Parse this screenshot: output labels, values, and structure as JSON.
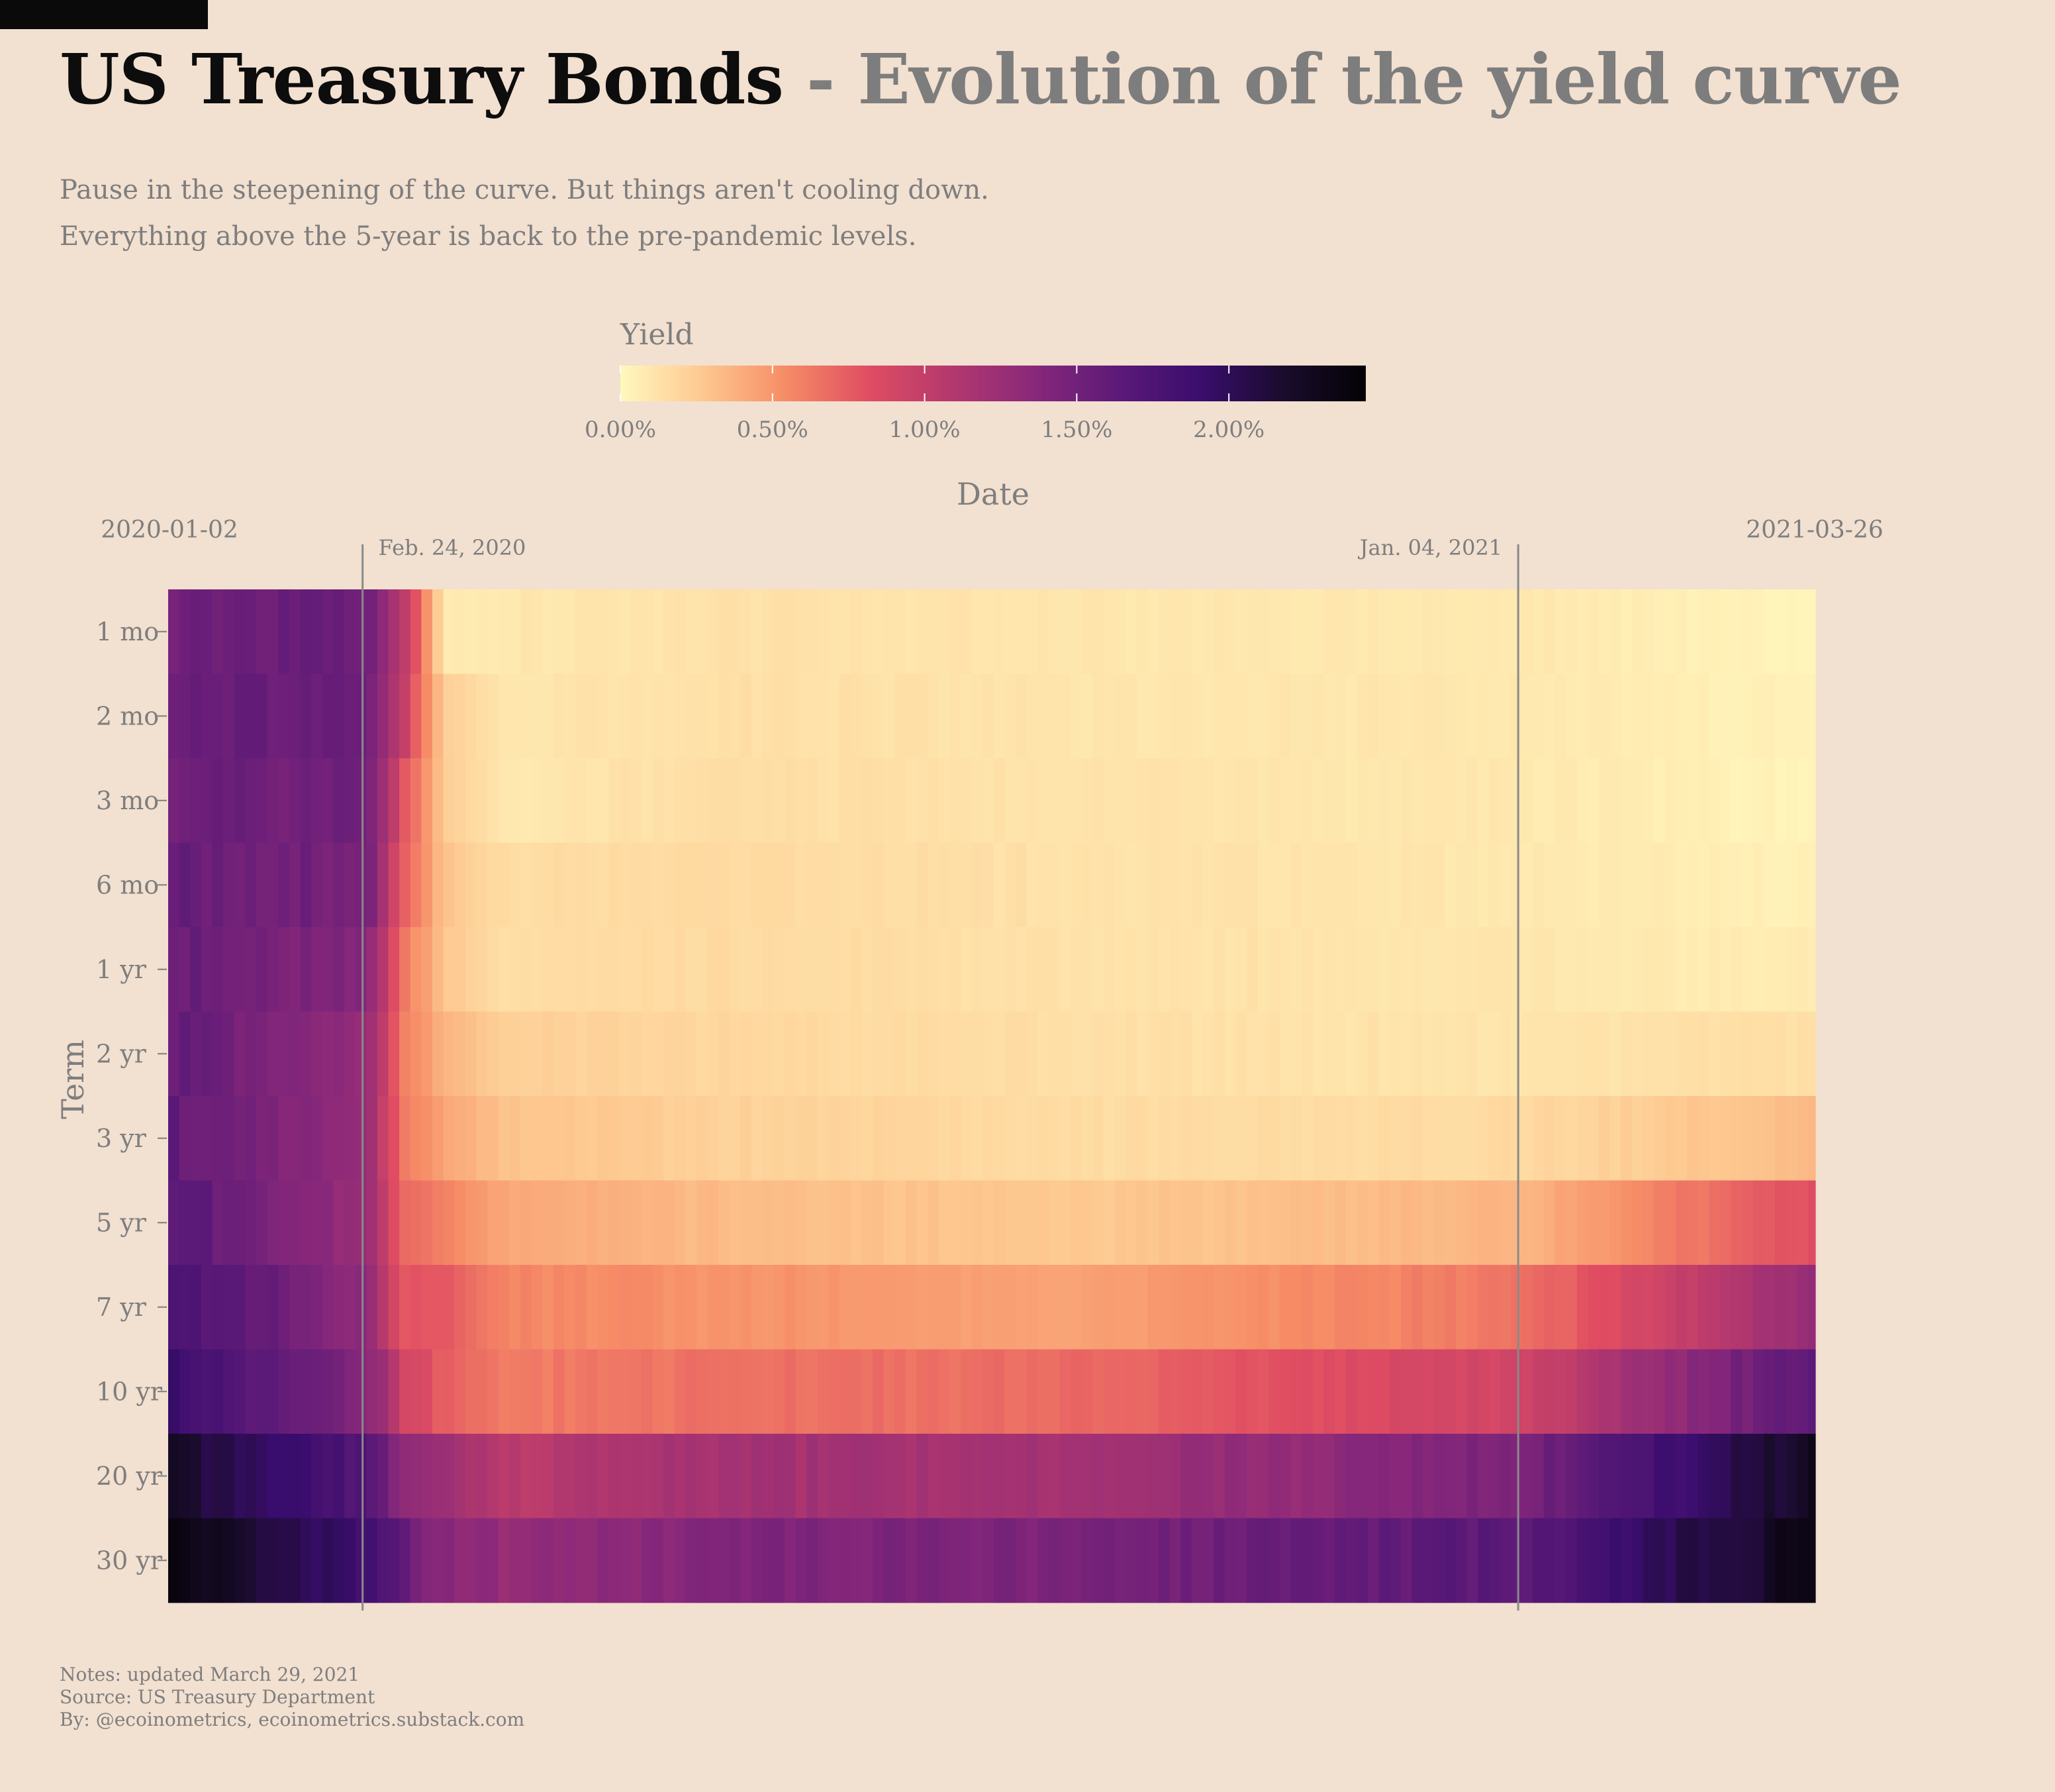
{
  "header": {
    "title_main": "US Treasury Bonds",
    "title_sep": " - ",
    "title_sub": "Evolution of the yield curve",
    "subtitle_lines": [
      "Pause in the steepening of the curve. But things aren't cooling down.",
      "Everything above the 5-year is back to the pre-pandemic levels."
    ]
  },
  "footer": {
    "notes": "Notes: updated March 29, 2021",
    "source": "Source: US Treasury Department",
    "by": "By: @ecoinometrics, ecoinometrics.substack.com"
  },
  "colors": {
    "background": "#f2e0d0",
    "title": "#0d0d0d",
    "muted_text": "#7e7e7e",
    "palette": "magma",
    "palette_stops": [
      "#fff8be",
      "#fdc890",
      "#f68c66",
      "#e04d62",
      "#b3386e",
      "#88287a",
      "#5c1a78",
      "#3a0d6e",
      "#1a0c2d",
      "#040205"
    ]
  },
  "chart_data": {
    "type": "heatmap",
    "xlabel": "Date",
    "ylabel": "Term",
    "x_range": [
      "2020-01-02",
      "2021-03-26"
    ],
    "x_end_labels": [
      "2020-01-02",
      "2021-03-26"
    ],
    "annotations": [
      {
        "date": "2020-02-24",
        "label": "Feb. 24, 2020"
      },
      {
        "date": "2021-01-04",
        "label": "Jan. 04, 2021"
      }
    ],
    "terms": [
      "1 mo",
      "2 mo",
      "3 mo",
      "6 mo",
      "1 yr",
      "2 yr",
      "3 yr",
      "5 yr",
      "7 yr",
      "10 yr",
      "20 yr",
      "30 yr"
    ],
    "legend": {
      "title": "Yield",
      "range": [
        0,
        2.45
      ],
      "ticks": [
        0,
        0.5,
        1.0,
        1.5,
        2.0
      ],
      "tick_labels": [
        "0.00%",
        "0.50%",
        "1.00%",
        "1.50%",
        "2.00%"
      ]
    },
    "series": [
      {
        "term": "1 mo",
        "dates": [
          "2020-01-02",
          "2020-02-24",
          "2020-03-05",
          "2020-03-16",
          "2020-04-01",
          "2020-06-01",
          "2020-09-01",
          "2021-01-04",
          "2021-03-26"
        ],
        "values": [
          1.53,
          1.55,
          1.05,
          0.08,
          0.09,
          0.13,
          0.1,
          0.09,
          0.02
        ]
      },
      {
        "term": "2 mo",
        "dates": [
          "2020-01-02",
          "2020-02-24",
          "2020-03-05",
          "2020-03-16",
          "2020-04-01",
          "2020-06-01",
          "2020-09-01",
          "2021-01-04",
          "2021-03-26"
        ],
        "values": [
          1.55,
          1.55,
          0.95,
          0.23,
          0.1,
          0.14,
          0.11,
          0.09,
          0.03
        ]
      },
      {
        "term": "3 mo",
        "dates": [
          "2020-01-02",
          "2020-02-24",
          "2020-03-05",
          "2020-03-16",
          "2020-04-01",
          "2020-06-01",
          "2020-09-01",
          "2021-01-04",
          "2021-03-26"
        ],
        "values": [
          1.54,
          1.51,
          0.78,
          0.24,
          0.09,
          0.15,
          0.12,
          0.09,
          0.02
        ]
      },
      {
        "term": "6 mo",
        "dates": [
          "2020-01-02",
          "2020-02-24",
          "2020-03-05",
          "2020-03-16",
          "2020-04-01",
          "2020-06-01",
          "2020-09-01",
          "2021-01-04",
          "2021-03-26"
        ],
        "values": [
          1.57,
          1.47,
          0.72,
          0.29,
          0.15,
          0.17,
          0.13,
          0.09,
          0.04
        ]
      },
      {
        "term": "1 yr",
        "dates": [
          "2020-01-02",
          "2020-02-24",
          "2020-03-05",
          "2020-03-16",
          "2020-04-01",
          "2020-06-01",
          "2020-09-01",
          "2021-01-04",
          "2021-03-26"
        ],
        "values": [
          1.56,
          1.38,
          0.62,
          0.28,
          0.15,
          0.17,
          0.13,
          0.1,
          0.06
        ]
      },
      {
        "term": "2 yr",
        "dates": [
          "2020-01-02",
          "2020-02-24",
          "2020-03-05",
          "2020-03-16",
          "2020-04-01",
          "2020-06-01",
          "2020-09-01",
          "2021-01-04",
          "2021-03-26"
        ],
        "values": [
          1.58,
          1.27,
          0.61,
          0.36,
          0.23,
          0.19,
          0.14,
          0.11,
          0.14
        ]
      },
      {
        "term": "3 yr",
        "dates": [
          "2020-01-02",
          "2020-02-24",
          "2020-03-05",
          "2020-03-16",
          "2020-04-01",
          "2020-06-01",
          "2020-09-01",
          "2021-01-04",
          "2021-03-26"
        ],
        "values": [
          1.59,
          1.24,
          0.62,
          0.44,
          0.3,
          0.22,
          0.16,
          0.17,
          0.34
        ]
      },
      {
        "term": "5 yr",
        "dates": [
          "2020-01-02",
          "2020-02-24",
          "2020-03-05",
          "2020-03-16",
          "2020-04-01",
          "2020-06-01",
          "2020-09-01",
          "2021-01-04",
          "2021-03-26"
        ],
        "values": [
          1.67,
          1.24,
          0.67,
          0.6,
          0.41,
          0.33,
          0.26,
          0.36,
          0.85
        ]
      },
      {
        "term": "7 yr",
        "dates": [
          "2020-01-02",
          "2020-02-24",
          "2020-03-05",
          "2020-03-16",
          "2020-04-01",
          "2020-06-01",
          "2020-09-01",
          "2021-01-04",
          "2021-03-26"
        ],
        "values": [
          1.79,
          1.3,
          0.76,
          0.79,
          0.56,
          0.51,
          0.44,
          0.64,
          1.28
        ]
      },
      {
        "term": "10 yr",
        "dates": [
          "2020-01-02",
          "2020-02-24",
          "2020-03-05",
          "2020-03-16",
          "2020-04-01",
          "2020-06-01",
          "2020-09-01",
          "2021-01-04",
          "2021-03-26"
        ],
        "values": [
          1.88,
          1.38,
          0.92,
          0.73,
          0.62,
          0.66,
          0.68,
          0.93,
          1.67
        ]
      },
      {
        "term": "20 yr",
        "dates": [
          "2020-01-02",
          "2020-02-24",
          "2020-03-05",
          "2020-03-16",
          "2020-04-01",
          "2020-06-01",
          "2020-09-01",
          "2021-01-04",
          "2021-03-26"
        ],
        "values": [
          2.19,
          1.68,
          1.31,
          1.21,
          1.05,
          1.19,
          1.18,
          1.46,
          2.29
        ]
      },
      {
        "term": "30 yr",
        "dates": [
          "2020-01-02",
          "2020-02-24",
          "2020-03-05",
          "2020-03-16",
          "2020-04-01",
          "2020-06-01",
          "2020-09-01",
          "2021-01-04",
          "2021-03-26"
        ],
        "values": [
          2.33,
          1.85,
          1.56,
          1.34,
          1.27,
          1.41,
          1.44,
          1.66,
          2.37
        ]
      }
    ]
  }
}
